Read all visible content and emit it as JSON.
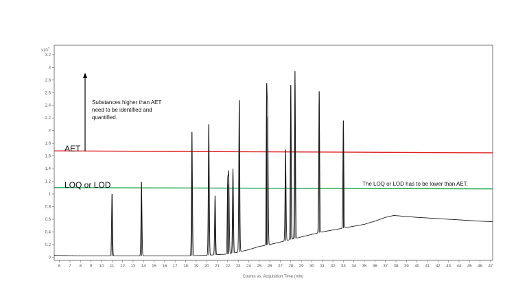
{
  "chart_data": {
    "type": "line",
    "title": "",
    "xlabel": "Counts vs. Acquisition Time (min)",
    "ylabel": "",
    "y_multiplier": "x10",
    "y_exponent": "7",
    "xlim": [
      5.5,
      47.2
    ],
    "ylim": [
      -0.05,
      3.35
    ],
    "grid": false,
    "x_ticks": [
      6,
      7,
      8,
      9,
      10,
      11,
      12,
      13,
      14,
      15,
      16,
      17,
      18,
      19,
      20,
      21,
      22,
      23,
      24,
      25,
      26,
      27,
      28,
      29,
      30,
      31,
      32,
      33,
      34,
      35,
      36,
      37,
      38,
      39,
      40,
      41,
      42,
      43,
      44,
      45,
      46,
      47
    ],
    "y_ticks": [
      0,
      0.2,
      0.4,
      0.6,
      0.8,
      1,
      1.2,
      1.4,
      1.6,
      1.8,
      2,
      2.2,
      2.4,
      2.6,
      2.8,
      3,
      3.2
    ],
    "baseline": [
      [
        5.5,
        0.03
      ],
      [
        8,
        0.02
      ],
      [
        11,
        0.02
      ],
      [
        14,
        0.02
      ],
      [
        18,
        0.02
      ],
      [
        20,
        0.03
      ],
      [
        22,
        0.05
      ],
      [
        23,
        0.08
      ],
      [
        24,
        0.12
      ],
      [
        25,
        0.17
      ],
      [
        26,
        0.2
      ],
      [
        27,
        0.24
      ],
      [
        28,
        0.28
      ],
      [
        29,
        0.32
      ],
      [
        30,
        0.36
      ],
      [
        31,
        0.4
      ],
      [
        32,
        0.43
      ],
      [
        33,
        0.46
      ],
      [
        34,
        0.49
      ],
      [
        35,
        0.52
      ],
      [
        36,
        0.57
      ],
      [
        37,
        0.63
      ],
      [
        37.8,
        0.66
      ],
      [
        38.5,
        0.65
      ],
      [
        40,
        0.63
      ],
      [
        42,
        0.61
      ],
      [
        44,
        0.59
      ],
      [
        46,
        0.57
      ],
      [
        47.2,
        0.56
      ]
    ],
    "peaks": [
      {
        "x": 11.0,
        "y": 1.0
      },
      {
        "x": 13.8,
        "y": 1.19
      },
      {
        "x": 18.6,
        "y": 1.98
      },
      {
        "x": 20.2,
        "y": 2.1
      },
      {
        "x": 20.8,
        "y": 0.97
      },
      {
        "x": 22.0,
        "y": 1.15
      },
      {
        "x": 22.1,
        "y": 1.26
      },
      {
        "x": 22.5,
        "y": 1.4
      },
      {
        "x": 23.1,
        "y": 2.48
      },
      {
        "x": 25.7,
        "y": 2.56
      },
      {
        "x": 25.8,
        "y": 2.22
      },
      {
        "x": 27.5,
        "y": 1.7
      },
      {
        "x": 28.0,
        "y": 2.72
      },
      {
        "x": 28.4,
        "y": 2.94
      },
      {
        "x": 30.7,
        "y": 2.62
      },
      {
        "x": 33.0,
        "y": 2.16
      }
    ],
    "reference_lines": [
      {
        "label": "AET",
        "y_start": 1.68,
        "y_end": 1.65,
        "color": "#e02020"
      },
      {
        "label": "LOQ or LOD",
        "y_start": 1.1,
        "y_end": 1.08,
        "color": "#19a54a"
      }
    ],
    "annotations": {
      "arrow_text": [
        "Substances higher than AET",
        "need to be identified and",
        "quantified."
      ],
      "loq_note": "The LOQ or LOD has to be lower than AET."
    }
  }
}
